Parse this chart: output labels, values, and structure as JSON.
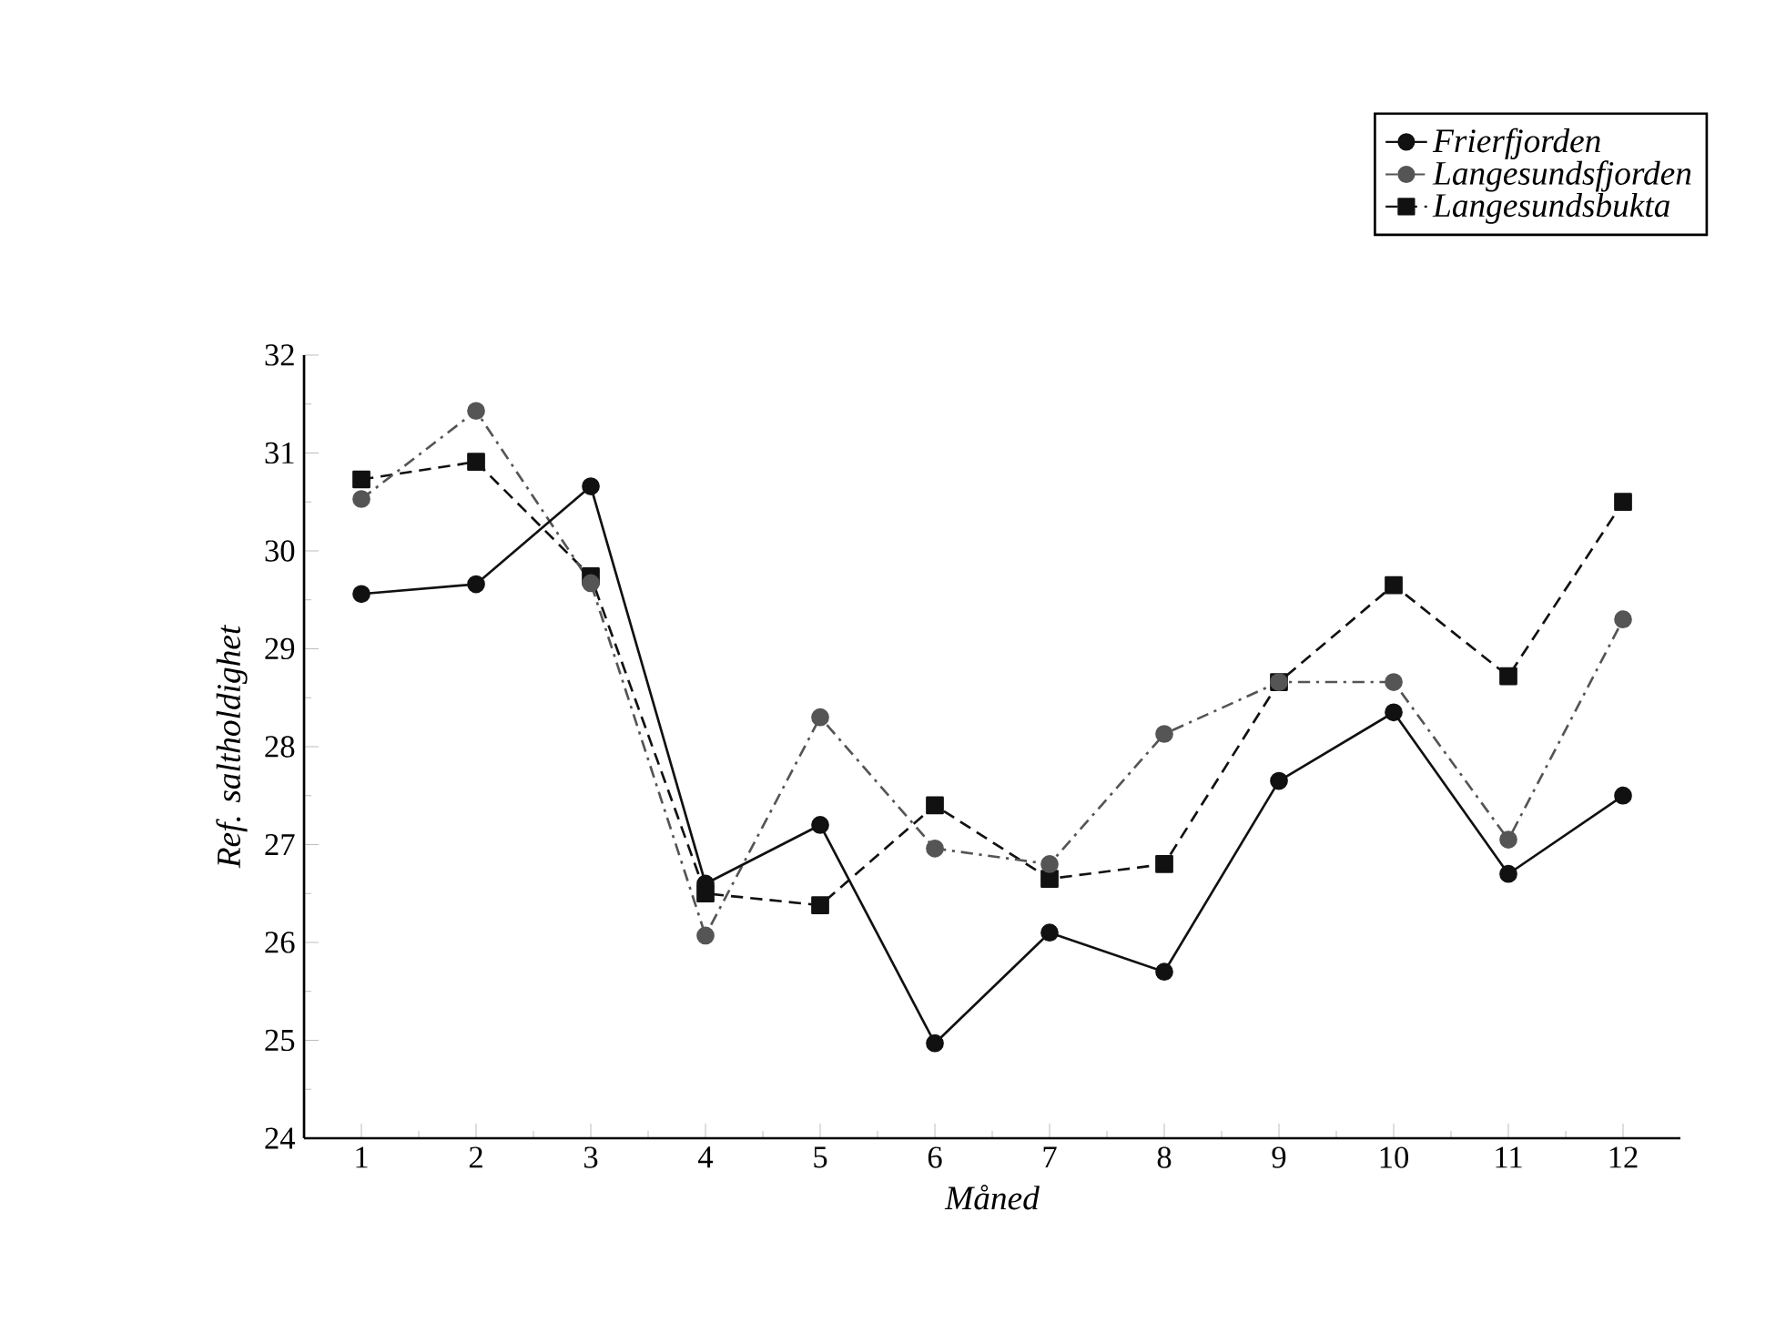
{
  "chart_data": {
    "type": "line",
    "xlabel": "Måned",
    "ylabel": "Ref. saltholdighet",
    "x": [
      1,
      2,
      3,
      4,
      5,
      6,
      7,
      8,
      9,
      10,
      11,
      12
    ],
    "xlim": [
      0.5,
      12.5
    ],
    "xticks": [
      1,
      2,
      3,
      4,
      5,
      6,
      7,
      8,
      9,
      10,
      11,
      12
    ],
    "ylim": [
      24,
      32
    ],
    "yticks": [
      24,
      25,
      26,
      27,
      28,
      29,
      30,
      31,
      32
    ],
    "grid": false,
    "legend": "top right",
    "series": [
      {
        "name": "Frierfjorden",
        "color": "#111111",
        "marker": "circle",
        "line_style": "solid",
        "values": [
          29.56,
          29.66,
          30.66,
          26.6,
          27.2,
          24.97,
          26.1,
          25.7,
          27.65,
          28.35,
          26.7,
          27.5
        ]
      },
      {
        "name": "Langesundsfjorden",
        "color": "#555555",
        "marker": "circle",
        "line_style": "dashdotted",
        "values": [
          30.53,
          31.43,
          29.67,
          26.07,
          28.3,
          26.96,
          26.8,
          28.13,
          28.66,
          28.66,
          27.05,
          29.3
        ]
      },
      {
        "name": "Langesundsbukta",
        "color": "#111111",
        "marker": "square",
        "line_style": "dashed",
        "values": [
          30.73,
          30.91,
          29.74,
          26.5,
          26.38,
          27.4,
          26.65,
          26.8,
          28.66,
          29.65,
          28.72,
          30.5
        ]
      }
    ]
  }
}
